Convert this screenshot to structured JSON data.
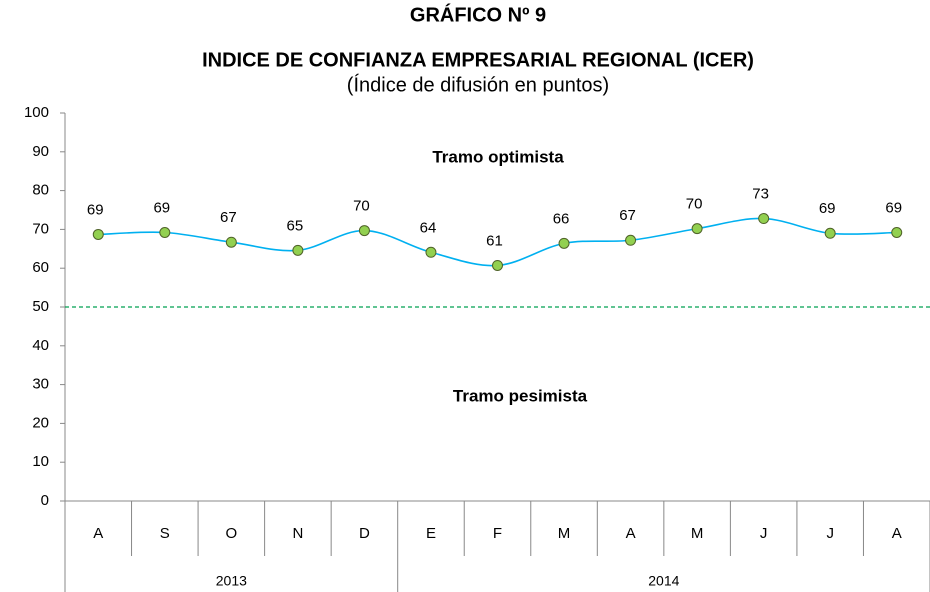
{
  "chart_data": {
    "type": "line",
    "title": "GRÁFICO Nº 9",
    "subtitle": "INDICE DE CONFIANZA EMPRESARIAL REGIONAL (ICER)",
    "note": "(Índice de difusión en puntos)",
    "categories": [
      "A",
      "S",
      "O",
      "N",
      "D",
      "E",
      "F",
      "M",
      "A",
      "M",
      "J",
      "J",
      "A"
    ],
    "groups": [
      {
        "name": "2013",
        "categories": 5
      },
      {
        "name": "2014",
        "categories": 8
      }
    ],
    "series": [
      {
        "name": "ICER",
        "color": "#00b0f0",
        "marker_color": "#92d050",
        "values": [
          68.7,
          69.2,
          66.7,
          64.6,
          69.7,
          64.1,
          60.7,
          66.4,
          67.2,
          70.2,
          72.8,
          69.0,
          69.2
        ],
        "value_labels": [
          "69",
          "69",
          "67",
          "65",
          "70",
          "64",
          "61",
          "66",
          "67",
          "70",
          "73",
          "69",
          "69"
        ]
      }
    ],
    "ylim": [
      0,
      100
    ],
    "yticks": [
      0,
      10,
      20,
      30,
      40,
      50,
      60,
      70,
      80,
      90,
      100
    ],
    "reference_line": {
      "value": 50,
      "color": "#00a050"
    },
    "annotations": [
      "Tramo optimista",
      "Tramo pesimista"
    ]
  }
}
